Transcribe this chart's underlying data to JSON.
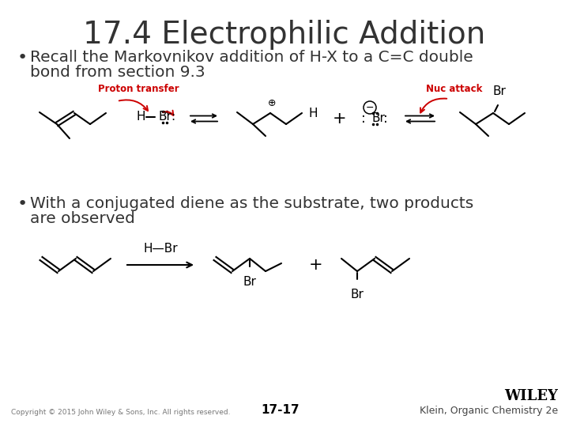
{
  "title": "17.4 Electrophilic Addition",
  "title_fontsize": 28,
  "title_color": "#333333",
  "background_color": "#ffffff",
  "bullet1_line1": "Recall the Markovnikov addition of H-X to a C=C double",
  "bullet1_line2": "bond from section 9.3",
  "bullet2_line1": "With a conjugated diene as the substrate, two products",
  "bullet2_line2": "are observed",
  "bullet_fontsize": 14.5,
  "bullet_color": "#333333",
  "red_color": "#cc0000",
  "copyright": "Copyright © 2015 John Wiley & Sons, Inc. All rights reserved.",
  "page_number": "17-17",
  "publisher": "WILEY",
  "book": "Klein, Organic Chemistry 2e",
  "proton_transfer": "Proton transfer",
  "nuc_attack": "Nuc attack"
}
